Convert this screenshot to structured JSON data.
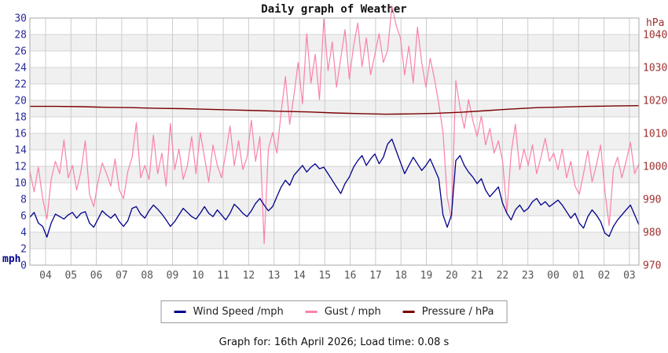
{
  "page": {
    "title": "Daily graph of Weather",
    "footer": "Graph for: 16th April 2026; Load time: 0.08 s"
  },
  "chart_data": {
    "type": "line",
    "title": "Daily graph of Weather",
    "x_tick_labels": [
      "04",
      "05",
      "06",
      "07",
      "08",
      "09",
      "10",
      "11",
      "12",
      "13",
      "14",
      "15",
      "16",
      "17",
      "18",
      "19",
      "20",
      "21",
      "22",
      "23",
      "00",
      "01",
      "02",
      "03"
    ],
    "y_left": {
      "label": "mph",
      "min": 0,
      "max": 30,
      "ticks": [
        0,
        2,
        4,
        6,
        8,
        10,
        12,
        14,
        16,
        18,
        20,
        22,
        24,
        26,
        28,
        30
      ]
    },
    "y_right": {
      "label": "hPa",
      "min": 970,
      "max": 1045,
      "ticks": [
        970,
        980,
        990,
        1000,
        1010,
        1020,
        1030,
        1040
      ]
    },
    "colors": {
      "left_axis": "#2b2b9b",
      "right_axis": "#a03030",
      "x_labels": "#555555",
      "grid": "#cccccc",
      "band": "#f0f0f0",
      "border": "#aaaaaa"
    },
    "series": [
      {
        "name": "Wind Speed /mph",
        "axis": "left",
        "color": "#00008b",
        "values": [
          5.8,
          6.4,
          5.1,
          4.7,
          3.4,
          5.1,
          6.2,
          5.9,
          5.6,
          6.1,
          6.4,
          5.7,
          6.3,
          6.5,
          5.1,
          4.6,
          5.6,
          6.6,
          6.1,
          5.7,
          6.2,
          5.3,
          4.7,
          5.4,
          6.9,
          7.1,
          6.2,
          5.7,
          6.6,
          7.3,
          6.8,
          6.2,
          5.5,
          4.7,
          5.3,
          6.1,
          6.9,
          6.4,
          5.9,
          5.6,
          6.3,
          7.1,
          6.3,
          5.9,
          6.7,
          6.1,
          5.5,
          6.3,
          7.4,
          6.9,
          6.3,
          5.9,
          6.6,
          7.5,
          8.1,
          7.3,
          6.6,
          7.1,
          8.3,
          9.5,
          10.3,
          9.7,
          10.9,
          11.5,
          12.1,
          11.3,
          11.9,
          12.3,
          11.7,
          11.9,
          11.1,
          10.3,
          9.5,
          8.7,
          9.9,
          10.7,
          11.9,
          12.7,
          13.3,
          12.1,
          12.9,
          13.5,
          12.3,
          13.1,
          14.7,
          15.3,
          13.9,
          12.5,
          11.1,
          12.1,
          13.1,
          12.3,
          11.5,
          12.1,
          12.9,
          11.7,
          10.5,
          6.1,
          4.6,
          6.1,
          12.7,
          13.3,
          12.1,
          11.3,
          10.7,
          9.9,
          10.5,
          9.1,
          8.3,
          8.9,
          9.5,
          7.5,
          6.3,
          5.5,
          6.7,
          7.3,
          6.5,
          6.9,
          7.7,
          8.1,
          7.3,
          7.7,
          7.1,
          7.5,
          7.9,
          7.3,
          6.5,
          5.7,
          6.3,
          5.1,
          4.5,
          5.9,
          6.7,
          6.1,
          5.3,
          3.9,
          3.5,
          4.7,
          5.5,
          6.1,
          6.7,
          7.3,
          6.1,
          4.9
        ]
      },
      {
        "name": "Gust / mph",
        "axis": "left",
        "color": "#fa81aa",
        "values": [
          11.4,
          8.9,
          11.9,
          8.1,
          5.6,
          10.4,
          12.6,
          11.1,
          15.2,
          10.6,
          12.1,
          9.1,
          11.4,
          15.1,
          8.6,
          7.1,
          10.1,
          12.4,
          11.1,
          9.6,
          12.9,
          9.1,
          8.1,
          11.4,
          13.1,
          17.3,
          10.6,
          12.1,
          10.4,
          15.8,
          11.1,
          13.6,
          9.6,
          17.2,
          11.6,
          14.1,
          10.4,
          12.1,
          15.6,
          11.1,
          16.1,
          13.1,
          10.1,
          14.6,
          12.1,
          10.6,
          13.6,
          16.9,
          12.1,
          15.1,
          11.6,
          13.1,
          17.6,
          12.6,
          15.6,
          2.6,
          14.1,
          16.1,
          13.6,
          18.6,
          22.9,
          17.1,
          20.6,
          24.6,
          19.6,
          28.1,
          22.1,
          25.6,
          20.1,
          29.9,
          23.6,
          27.1,
          21.6,
          25.1,
          28.6,
          22.6,
          26.6,
          29.4,
          24.1,
          27.6,
          23.1,
          25.6,
          28.1,
          24.6,
          26.1,
          31.5,
          29.1,
          27.6,
          23.1,
          26.6,
          22.1,
          28.9,
          24.6,
          21.6,
          25.1,
          22.6,
          19.6,
          16.1,
          8.2,
          5.6,
          22.4,
          19.1,
          16.6,
          20.1,
          17.6,
          15.6,
          18.1,
          14.6,
          16.6,
          13.6,
          15.1,
          12.6,
          6.4,
          13.6,
          17.1,
          11.6,
          14.1,
          12.1,
          14.6,
          11.1,
          13.1,
          15.4,
          12.6,
          13.6,
          11.6,
          14.1,
          10.6,
          12.6,
          9.6,
          8.6,
          11.1,
          13.9,
          10.1,
          12.1,
          14.6,
          9.1,
          4.8,
          11.6,
          13.1,
          10.6,
          12.6,
          14.9,
          11.1,
          12.3
        ]
      },
      {
        "name": "Pressure / hPa",
        "axis": "right",
        "color": "#7a0000",
        "values": [
          1018.2,
          1018.2,
          1018.1,
          1017.9,
          1017.8,
          1017.6,
          1017.5,
          1017.3,
          1017.1,
          1016.9,
          1016.7,
          1016.5,
          1016.2,
          1016.0,
          1015.8,
          1015.9,
          1016.1,
          1016.4,
          1016.9,
          1017.4,
          1017.8,
          1018.0,
          1018.2,
          1018.3,
          1018.4
        ]
      }
    ]
  }
}
